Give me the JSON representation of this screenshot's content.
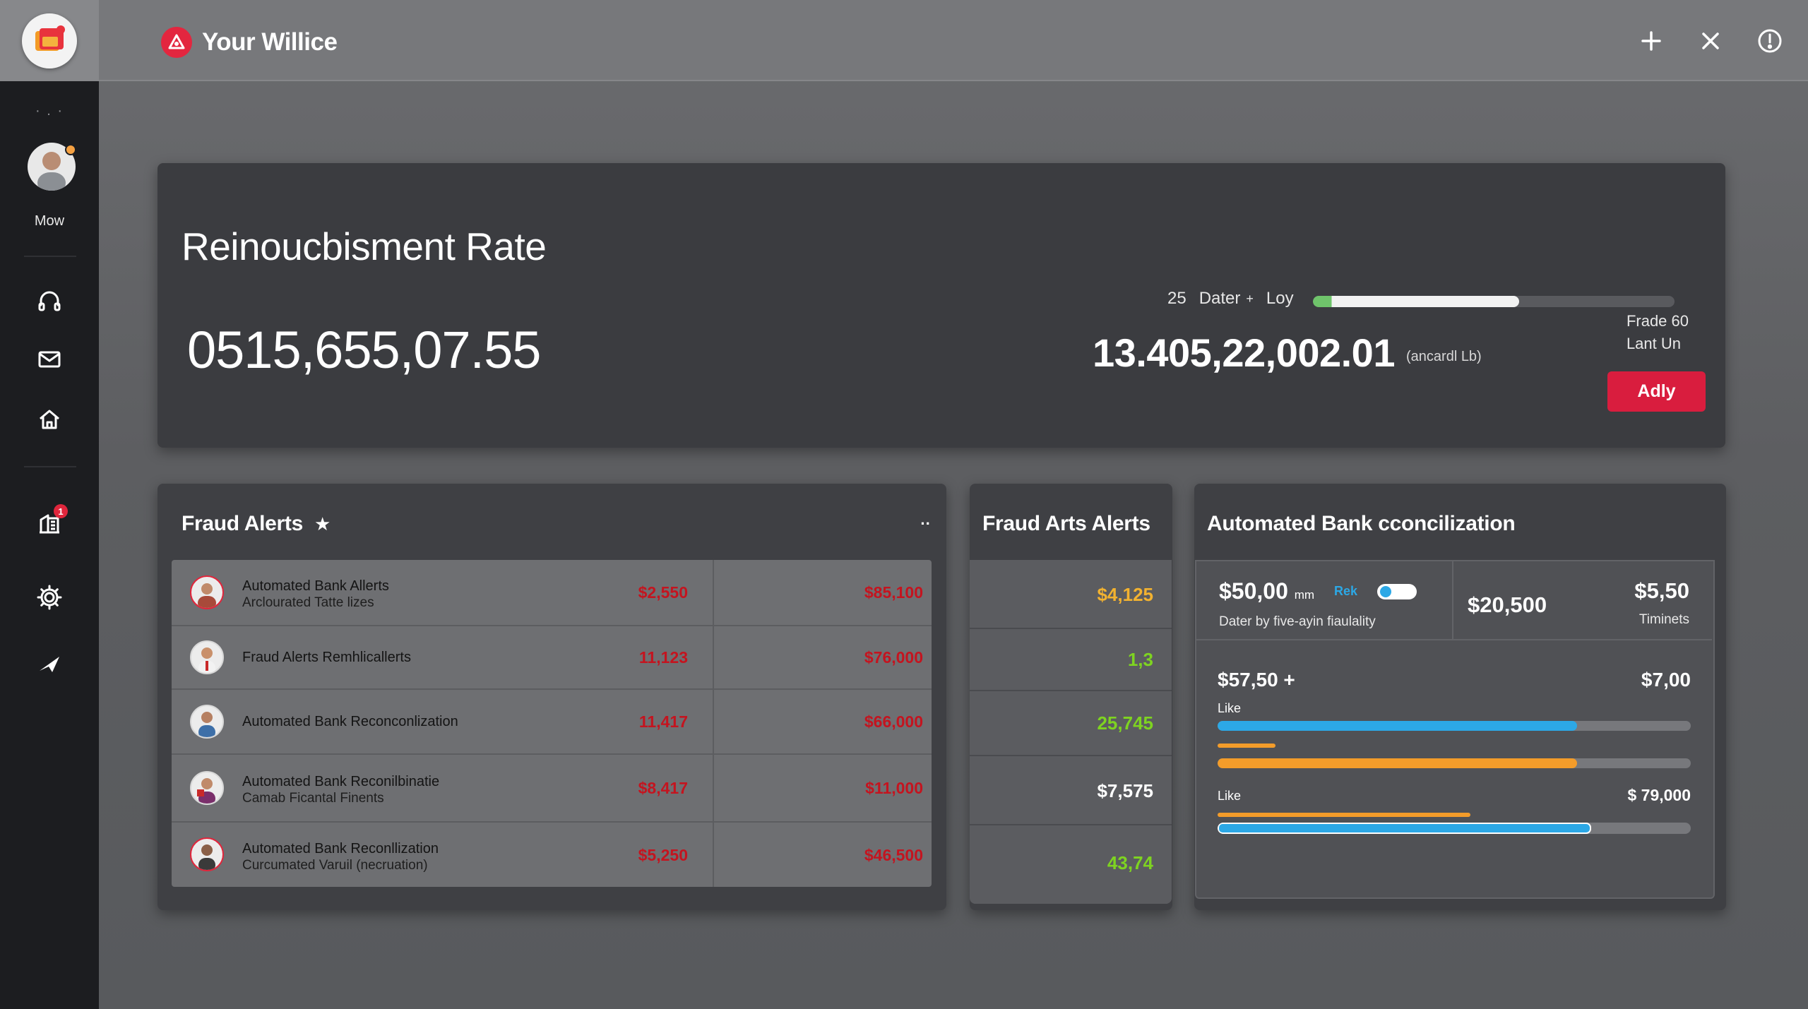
{
  "app": {
    "title": "Your Willice"
  },
  "sidebar": {
    "dots": "· . ·",
    "user_name": "Mow",
    "notification_count": "1",
    "items": [
      {
        "icon": "headset-icon"
      },
      {
        "icon": "mail-icon"
      },
      {
        "icon": "home-icon"
      },
      {
        "icon": "building-icon"
      },
      {
        "icon": "gear-icon"
      },
      {
        "icon": "send-icon"
      }
    ]
  },
  "topbar": {
    "actions": [
      "plus-icon",
      "close-icon",
      "alert-icon"
    ]
  },
  "hero": {
    "title": "Reinoucbisment Rate",
    "value": "0515,655,07.55",
    "legend_num": "25",
    "legend_label": "Dater",
    "legend_plus": "+",
    "legend_end": "Loy",
    "progress": 0.57,
    "secondary_value": "13.405,22,002.01",
    "secondary_unit": "(ancardl Lb)",
    "side_line1": "Frade 60",
    "side_line2": "Lant Un",
    "button": "Adly"
  },
  "fraud_alerts": {
    "title": "Fraud Alerts",
    "more": "··",
    "rows": [
      {
        "name": "Automated Bank  Allerts",
        "sub": "Arclourated Tatte lizes",
        "amount1": "$2,550",
        "amount2": "$85,100"
      },
      {
        "name": "Fraud Alerts Remhlicallerts",
        "sub": "",
        "amount1": "11,123",
        "amount2": "$76,000"
      },
      {
        "name": "Automated Bank Reconconlization",
        "sub": "",
        "amount1": "11,417",
        "amount2": "$66,000"
      },
      {
        "name": "Automated Bank Reconilbinatie",
        "sub": "Camab Ficantal Finents",
        "amount1": "$8,417",
        "amount2": "$11,000"
      },
      {
        "name": "Automated Bank Reconllization",
        "sub": "Curcumated Varuil (necruation)",
        "amount1": "$5,250",
        "amount2": "$46,500"
      }
    ]
  },
  "fraud_arts": {
    "title": "Fraud Arts Alerts",
    "values": [
      {
        "value": "$4,125",
        "color": "#f2b230"
      },
      {
        "value": "1,3",
        "color": "#7ed321"
      },
      {
        "value": "25,745",
        "color": "#7ed321"
      },
      {
        "value": "$7,575",
        "color": "#ffffff"
      },
      {
        "value": "43,74",
        "color": "#7ed321"
      }
    ]
  },
  "reconciliation": {
    "title": "Automated Bank cconcilization",
    "cell1_value": "$50,00",
    "cell1_unit": "mm",
    "cell1_tag": "Rek",
    "cell1_caption": "Dater by five-ayin fiaulality",
    "cell2_value": "$20,500",
    "cell3_value": "$5,50",
    "cell3_caption": "Timinets",
    "row1_left": "$57,50 +",
    "row1_right": "$7,00",
    "row1_label": "Like",
    "row2_label": "Like",
    "row2_right": "$ 79,000",
    "bar1_progress": 0.76,
    "bar2_progress": 0.76,
    "bar3_progress": 0.79,
    "colors": {
      "blue": "#2ca8e6",
      "orange": "#f39c2a"
    }
  }
}
